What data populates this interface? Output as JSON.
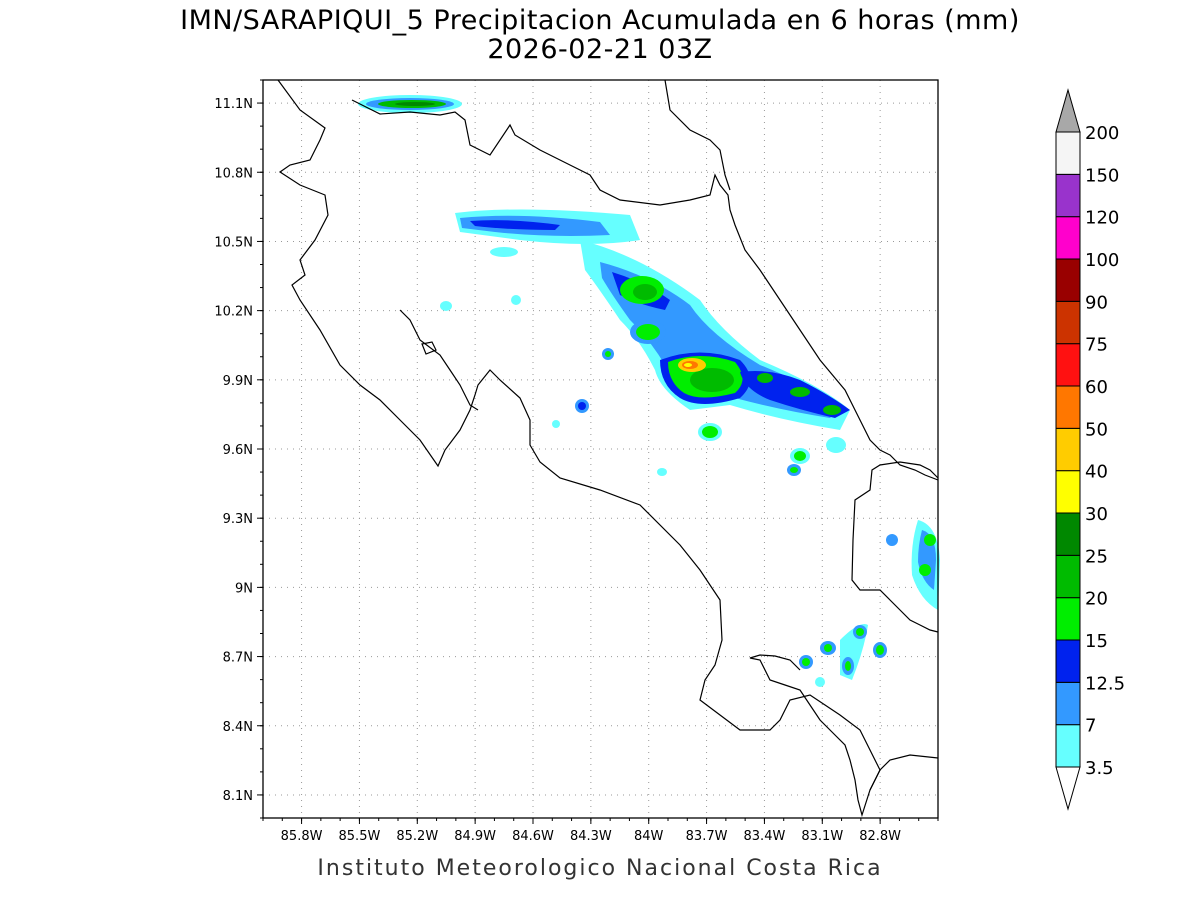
{
  "title": {
    "line1": "IMN/SARAPIQUI_5 Precipitacion Acumulada en 6 horas (mm)",
    "line2": "2026-02-21 03Z"
  },
  "credit": "Instituto Meteorologico Nacional Costa Rica",
  "map": {
    "lon_labels": [
      "85.8W",
      "85.5W",
      "85.2W",
      "84.9W",
      "84.6W",
      "84.3W",
      "84W",
      "83.7W",
      "83.4W",
      "83.1W",
      "82.8W"
    ],
    "lon_values": [
      -85.8,
      -85.5,
      -85.2,
      -84.9,
      -84.6,
      -84.3,
      -84.0,
      -83.7,
      -83.4,
      -83.1,
      -82.8
    ],
    "lat_labels": [
      "11.1N",
      "10.8N",
      "10.5N",
      "10.2N",
      "9.9N",
      "9.6N",
      "9.3N",
      "9N",
      "8.7N",
      "8.4N",
      "8.1N"
    ],
    "lat_values": [
      11.1,
      10.8,
      10.5,
      10.2,
      9.9,
      9.6,
      9.3,
      9.0,
      8.7,
      8.4,
      8.1
    ],
    "lon_range": [
      -86.0,
      -82.5
    ],
    "lat_range": [
      8.0,
      11.2
    ],
    "grid": "dotted"
  },
  "colorbar": {
    "labels": [
      "3.5",
      "7",
      "12.5",
      "15",
      "20",
      "25",
      "30",
      "40",
      "50",
      "60",
      "75",
      "90",
      "100",
      "120",
      "150",
      "200"
    ],
    "colors": [
      "#66ffff",
      "#3399ff",
      "#0022ee",
      "#00ee00",
      "#00bb00",
      "#008800",
      "#ffff00",
      "#ffcc00",
      "#ff7700",
      "#ff1111",
      "#cc3300",
      "#990000",
      "#ff00cc",
      "#9933cc",
      "#f5f5f5"
    ],
    "over_color": "#a8a8a8",
    "under_color": "#ffffff"
  },
  "colors": {
    "coast": "#000000",
    "grid": "#999999"
  }
}
